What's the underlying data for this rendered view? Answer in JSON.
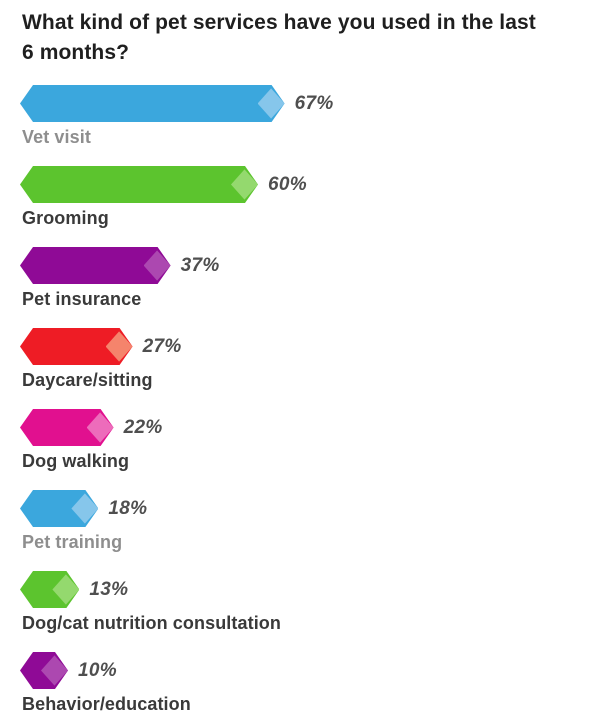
{
  "title": {
    "text": "What kind of pet services have you used in the last 6 months?",
    "lines": [
      "What kind of pet services have you used in the last",
      "6 months?"
    ]
  },
  "chart_data": {
    "type": "bar",
    "orientation": "horizontal",
    "title": "What kind of pet services have you used in the last 6 months?",
    "unit": "%",
    "value_range": [
      0,
      100
    ],
    "grid": false,
    "legend": false,
    "categories": [
      "Vet visit",
      "Grooming",
      "Pet insurance",
      "Daycare/sitting",
      "Dog walking",
      "Pet training",
      "Dog/cat nutrition consultation",
      "Behavior/education"
    ],
    "values": [
      67,
      60,
      37,
      27,
      22,
      18,
      13,
      10
    ],
    "bars": [
      {
        "label": "Vet visit",
        "value": 67,
        "value_label": "67%",
        "color": "#3BA7DD",
        "tip_color": "#86C6EB",
        "label_muted": true
      },
      {
        "label": "Grooming",
        "value": 60,
        "value_label": "60%",
        "color": "#5CC42E",
        "tip_color": "#94D96E",
        "label_muted": false
      },
      {
        "label": "Pet insurance",
        "value": 37,
        "value_label": "37%",
        "color": "#8F0A96",
        "tip_color": "#AC48B0",
        "label_muted": false
      },
      {
        "label": "Daycare/sitting",
        "value": 27,
        "value_label": "27%",
        "color": "#EE1C25",
        "tip_color": "#F5846C",
        "label_muted": false
      },
      {
        "label": "Dog walking",
        "value": 22,
        "value_label": "22%",
        "color": "#E1108F",
        "tip_color": "#ED6CBB",
        "label_muted": false
      },
      {
        "label": "Pet training",
        "value": 18,
        "value_label": "18%",
        "color": "#3BA7DD",
        "tip_color": "#86C6EB",
        "label_muted": true
      },
      {
        "label": "Dog/cat nutrition consultation",
        "value": 13,
        "value_label": "13%",
        "color": "#5CC42E",
        "tip_color": "#94D96E",
        "label_muted": false
      },
      {
        "label": "Behavior/education",
        "value": 10,
        "value_label": "10%",
        "color": "#8F0A96",
        "tip_color": "#AC48B0",
        "label_muted": false
      }
    ],
    "colors": {
      "title_text": "#1f1f1f",
      "value_text": "#4f4f4f",
      "label_text": "#3a3a3a",
      "label_text_muted": "#8e8e8e",
      "background": "#ffffff"
    }
  }
}
